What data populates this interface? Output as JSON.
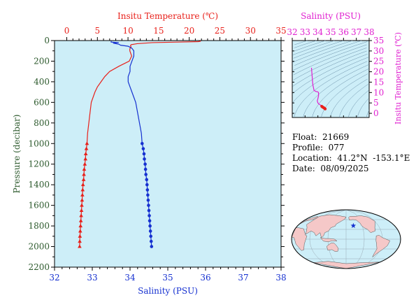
{
  "colors": {
    "temperature": "#e8201a",
    "salinity": "#1530d0",
    "ts_diagram": "#e020d0",
    "pressure_axis": "#2d5a2d",
    "plot_bg": "#cdeef8",
    "land": "#f5c8c8",
    "ocean": "#cdeef8",
    "float_marker": "#1530d0"
  },
  "chart_data": [
    {
      "type": "line",
      "chart": "profile",
      "xlabel_top": "Insitu Temperature (℃)",
      "xlabel_bottom": "Salinity (PSU)",
      "ylabel": "Pressure (decibar)",
      "temp_ticks": [
        "0",
        "5",
        "10",
        "15",
        "20",
        "25",
        "30",
        "35"
      ],
      "sal_ticks": [
        "32",
        "33",
        "34",
        "35",
        "36",
        "37",
        "38"
      ],
      "pres_ticks": [
        "0",
        "200",
        "400",
        "600",
        "800",
        "1000",
        "1200",
        "1400",
        "1600",
        "1800",
        "2000",
        "2200"
      ],
      "temp_range": [
        -2,
        35
      ],
      "sal_range": [
        32,
        38
      ],
      "pres_range": [
        0,
        2200
      ],
      "grid": false,
      "series": [
        {
          "variable": "temperature",
          "axis": "top",
          "marker": "triangle",
          "points": [
            [
              21.9,
              5
            ],
            [
              21.5,
              10
            ],
            [
              18,
              15
            ],
            [
              14,
              20
            ],
            [
              11.5,
              30
            ],
            [
              10.5,
              40
            ],
            [
              10.4,
              50
            ],
            [
              10.5,
              60
            ],
            [
              10.3,
              80
            ],
            [
              10.3,
              100
            ],
            [
              10.6,
              150
            ],
            [
              10.2,
              200
            ],
            [
              8.5,
              250
            ],
            [
              7,
              300
            ],
            [
              6.2,
              350
            ],
            [
              5.6,
              400
            ],
            [
              5,
              450
            ],
            [
              4.6,
              500
            ],
            [
              4.3,
              550
            ],
            [
              4,
              600
            ],
            [
              3.8,
              700
            ],
            [
              3.6,
              800
            ],
            [
              3.4,
              900
            ],
            [
              3.3,
              1000
            ],
            [
              3.2,
              1050
            ],
            [
              3.1,
              1100
            ],
            [
              3.05,
              1150
            ],
            [
              2.95,
              1200
            ],
            [
              2.85,
              1250
            ],
            [
              2.8,
              1300
            ],
            [
              2.75,
              1350
            ],
            [
              2.65,
              1400
            ],
            [
              2.6,
              1450
            ],
            [
              2.55,
              1500
            ],
            [
              2.5,
              1550
            ],
            [
              2.45,
              1600
            ],
            [
              2.4,
              1650
            ],
            [
              2.35,
              1700
            ],
            [
              2.3,
              1750
            ],
            [
              2.25,
              1800
            ],
            [
              2.2,
              1850
            ],
            [
              2.15,
              1900
            ],
            [
              2.12,
              1950
            ],
            [
              2.1,
              2000
            ]
          ],
          "marker_from_pressure": 1000
        },
        {
          "variable": "salinity",
          "axis": "bottom",
          "marker": "circle",
          "points": [
            [
              33.5,
              5
            ],
            [
              33.5,
              15
            ],
            [
              33.7,
              20
            ],
            [
              33.55,
              25
            ],
            [
              33.7,
              35
            ],
            [
              33.75,
              45
            ],
            [
              33.95,
              55
            ],
            [
              34.05,
              75
            ],
            [
              34.1,
              100
            ],
            [
              34.1,
              150
            ],
            [
              34.05,
              200
            ],
            [
              34.0,
              250
            ],
            [
              34.0,
              300
            ],
            [
              33.95,
              350
            ],
            [
              33.95,
              400
            ],
            [
              34.0,
              450
            ],
            [
              34.05,
              500
            ],
            [
              34.1,
              550
            ],
            [
              34.15,
              600
            ],
            [
              34.2,
              700
            ],
            [
              34.25,
              800
            ],
            [
              34.3,
              900
            ],
            [
              34.32,
              1000
            ],
            [
              34.35,
              1050
            ],
            [
              34.37,
              1100
            ],
            [
              34.38,
              1150
            ],
            [
              34.4,
              1200
            ],
            [
              34.41,
              1250
            ],
            [
              34.42,
              1300
            ],
            [
              34.44,
              1350
            ],
            [
              34.45,
              1400
            ],
            [
              34.46,
              1450
            ],
            [
              34.47,
              1500
            ],
            [
              34.48,
              1550
            ],
            [
              34.49,
              1600
            ],
            [
              34.5,
              1650
            ],
            [
              34.51,
              1700
            ],
            [
              34.52,
              1750
            ],
            [
              34.53,
              1800
            ],
            [
              34.54,
              1850
            ],
            [
              34.55,
              1900
            ],
            [
              34.56,
              1950
            ],
            [
              34.57,
              2000
            ]
          ],
          "marker_from_pressure": 1000
        }
      ]
    },
    {
      "type": "line",
      "chart": "ts_diagram",
      "xlabel": "Salinity (PSU)",
      "ylabel": "Insitu Temperature (℃)",
      "sal_ticks": [
        "32",
        "33",
        "34",
        "35",
        "36",
        "37",
        "38"
      ],
      "temp_ticks": [
        "0",
        "5",
        "10",
        "15",
        "20",
        "25",
        "30",
        "35"
      ],
      "sal_range": [
        32,
        38
      ],
      "temp_range": [
        -2,
        35
      ],
      "density_contours": true,
      "points": [
        [
          33.5,
          21.9
        ],
        [
          33.55,
          18
        ],
        [
          33.6,
          14
        ],
        [
          33.7,
          11
        ],
        [
          33.85,
          10.5
        ],
        [
          34.0,
          10.3
        ],
        [
          34.05,
          10.0
        ],
        [
          34.05,
          8.5
        ],
        [
          34.0,
          7
        ],
        [
          33.95,
          6
        ],
        [
          34.0,
          5
        ],
        [
          34.1,
          4.4
        ],
        [
          34.2,
          4
        ],
        [
          34.3,
          3.4
        ],
        [
          34.35,
          3.1
        ],
        [
          34.4,
          2.9
        ],
        [
          34.45,
          2.7
        ],
        [
          34.5,
          2.5
        ],
        [
          34.55,
          2.2
        ],
        [
          34.57,
          2.1
        ]
      ],
      "highlight_from_index": 13
    }
  ],
  "info": {
    "float": "Float:  21669",
    "profile": "Profile:  077",
    "location": "Location:  41.2°N  -153.1°E",
    "date": "Date:  08/09/2025"
  },
  "map": {
    "type": "world map",
    "float_lat": 41.2,
    "float_lon": -153.1
  }
}
